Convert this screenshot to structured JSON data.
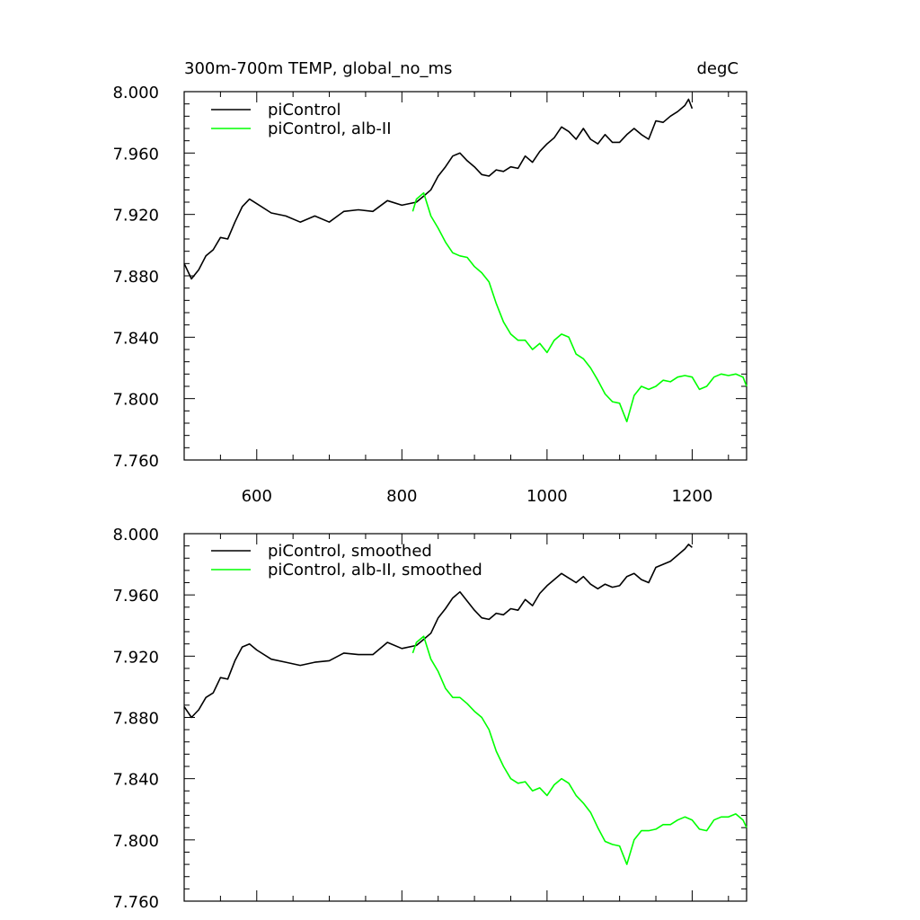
{
  "chart_data": [
    {
      "type": "line",
      "title_left": "300m-700m TEMP, global_no_ms",
      "title_right": "degC",
      "xlabel": "",
      "ylabel": "",
      "xlim": [
        500,
        1275
      ],
      "ylim": [
        7.76,
        8.0
      ],
      "xticks": [
        600,
        800,
        1000,
        1200
      ],
      "xtick_labels": [
        "600",
        "800",
        "1000",
        "1200"
      ],
      "yticks": [
        7.76,
        7.8,
        7.84,
        7.88,
        7.92,
        7.96,
        8.0
      ],
      "ytick_labels": [
        "7.760",
        "7.800",
        "7.840",
        "7.880",
        "7.920",
        "7.960",
        "8.000"
      ],
      "legend_position": "top-left",
      "series": [
        {
          "name": "piControl",
          "color": "#000000",
          "x": [
            500,
            510,
            520,
            530,
            540,
            550,
            560,
            570,
            580,
            590,
            600,
            620,
            640,
            660,
            680,
            700,
            720,
            740,
            760,
            780,
            800,
            820,
            830,
            840,
            850,
            860,
            870,
            880,
            890,
            900,
            910,
            920,
            930,
            940,
            950,
            960,
            970,
            980,
            990,
            1000,
            1010,
            1020,
            1030,
            1040,
            1050,
            1060,
            1070,
            1080,
            1090,
            1100,
            1110,
            1120,
            1130,
            1140,
            1150,
            1160,
            1170,
            1180,
            1190,
            1195,
            1200
          ],
          "y": [
            7.888,
            7.878,
            7.884,
            7.893,
            7.897,
            7.905,
            7.904,
            7.915,
            7.925,
            7.93,
            7.927,
            7.921,
            7.919,
            7.915,
            7.919,
            7.915,
            7.922,
            7.923,
            7.922,
            7.929,
            7.926,
            7.928,
            7.932,
            7.936,
            7.945,
            7.951,
            7.958,
            7.96,
            7.955,
            7.951,
            7.946,
            7.945,
            7.949,
            7.948,
            7.951,
            7.95,
            7.958,
            7.954,
            7.961,
            7.966,
            7.97,
            7.977,
            7.974,
            7.969,
            7.976,
            7.969,
            7.966,
            7.972,
            7.967,
            7.967,
            7.972,
            7.976,
            7.972,
            7.969,
            7.981,
            7.98,
            7.984,
            7.987,
            7.991,
            7.995,
            7.989
          ]
        },
        {
          "name": "piControl, alb-II",
          "color": "#00ff00",
          "x": [
            815,
            820,
            830,
            840,
            850,
            860,
            870,
            880,
            890,
            900,
            910,
            920,
            930,
            940,
            950,
            960,
            970,
            980,
            990,
            1000,
            1010,
            1020,
            1030,
            1040,
            1050,
            1060,
            1070,
            1080,
            1090,
            1100,
            1110,
            1120,
            1130,
            1140,
            1150,
            1160,
            1170,
            1180,
            1190,
            1200,
            1210,
            1220,
            1230,
            1240,
            1250,
            1260,
            1270,
            1275
          ],
          "y": [
            7.922,
            7.93,
            7.934,
            7.919,
            7.911,
            7.902,
            7.895,
            7.893,
            7.892,
            7.886,
            7.882,
            7.876,
            7.862,
            7.85,
            7.842,
            7.838,
            7.838,
            7.832,
            7.836,
            7.83,
            7.838,
            7.842,
            7.84,
            7.829,
            7.826,
            7.82,
            7.812,
            7.803,
            7.798,
            7.797,
            7.785,
            7.802,
            7.808,
            7.806,
            7.808,
            7.812,
            7.811,
            7.814,
            7.815,
            7.814,
            7.806,
            7.808,
            7.814,
            7.816,
            7.815,
            7.816,
            7.814,
            7.808
          ]
        }
      ]
    },
    {
      "type": "line",
      "xlim": [
        500,
        1275
      ],
      "ylim": [
        7.76,
        8.0
      ],
      "xticks": [
        600,
        800,
        1000,
        1200
      ],
      "yticks": [
        7.76,
        7.8,
        7.84,
        7.88,
        7.92,
        7.96,
        8.0
      ],
      "ytick_labels": [
        "7.760",
        "7.800",
        "7.840",
        "7.880",
        "7.920",
        "7.960",
        "8.000"
      ],
      "legend_position": "top-left",
      "series": [
        {
          "name": "piControl, smoothed",
          "color": "#000000",
          "x": [
            500,
            510,
            520,
            530,
            540,
            550,
            560,
            570,
            580,
            590,
            600,
            620,
            640,
            660,
            680,
            700,
            720,
            740,
            760,
            780,
            800,
            820,
            830,
            840,
            850,
            860,
            870,
            880,
            890,
            900,
            910,
            920,
            930,
            940,
            950,
            960,
            970,
            980,
            990,
            1000,
            1010,
            1020,
            1030,
            1040,
            1050,
            1060,
            1070,
            1080,
            1090,
            1100,
            1110,
            1120,
            1130,
            1140,
            1150,
            1160,
            1170,
            1180,
            1190,
            1195,
            1200
          ],
          "y": [
            7.887,
            7.88,
            7.885,
            7.893,
            7.896,
            7.906,
            7.905,
            7.917,
            7.926,
            7.928,
            7.924,
            7.918,
            7.916,
            7.914,
            7.916,
            7.917,
            7.922,
            7.921,
            7.921,
            7.929,
            7.925,
            7.927,
            7.931,
            7.935,
            7.945,
            7.951,
            7.958,
            7.962,
            7.956,
            7.95,
            7.945,
            7.944,
            7.948,
            7.947,
            7.951,
            7.95,
            7.957,
            7.953,
            7.961,
            7.966,
            7.97,
            7.974,
            7.971,
            7.968,
            7.972,
            7.967,
            7.964,
            7.967,
            7.965,
            7.966,
            7.972,
            7.974,
            7.97,
            7.968,
            7.978,
            7.98,
            7.982,
            7.986,
            7.99,
            7.993,
            7.991
          ]
        },
        {
          "name": "piControl, alb-II, smoothed",
          "color": "#00ff00",
          "x": [
            815,
            820,
            830,
            840,
            850,
            860,
            870,
            880,
            890,
            900,
            910,
            920,
            930,
            940,
            950,
            960,
            970,
            980,
            990,
            1000,
            1010,
            1020,
            1030,
            1040,
            1050,
            1060,
            1070,
            1080,
            1090,
            1100,
            1110,
            1120,
            1130,
            1140,
            1150,
            1160,
            1170,
            1180,
            1190,
            1200,
            1210,
            1220,
            1230,
            1240,
            1250,
            1260,
            1270,
            1275
          ],
          "y": [
            7.922,
            7.929,
            7.933,
            7.918,
            7.91,
            7.899,
            7.893,
            7.893,
            7.889,
            7.884,
            7.88,
            7.872,
            7.858,
            7.848,
            7.84,
            7.837,
            7.838,
            7.832,
            7.834,
            7.829,
            7.836,
            7.84,
            7.837,
            7.829,
            7.824,
            7.818,
            7.808,
            7.799,
            7.797,
            7.796,
            7.784,
            7.8,
            7.806,
            7.806,
            7.807,
            7.81,
            7.81,
            7.813,
            7.815,
            7.813,
            7.807,
            7.806,
            7.813,
            7.815,
            7.815,
            7.817,
            7.813,
            7.808
          ]
        }
      ]
    }
  ]
}
